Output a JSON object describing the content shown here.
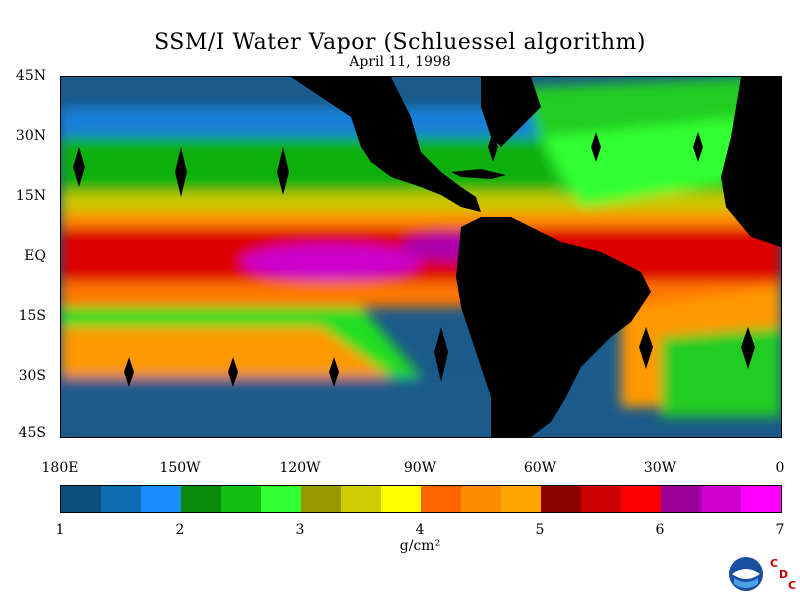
{
  "title": "SSM/I Water Vapor (Schluessel algorithm)",
  "date": "April 11, 1998",
  "lat_labels": [
    "45N",
    "30N",
    "15N",
    "EQ",
    "15S",
    "30S",
    "45S"
  ],
  "lon_labels": [
    "180E",
    "150W",
    "120W",
    "90W",
    "60W",
    "30W",
    "0"
  ],
  "color_scale": {
    "colors": [
      "#0d4f7a",
      "#0e6db0",
      "#1a8cff",
      "#0a8a0a",
      "#10c010",
      "#33ff33",
      "#999900",
      "#cccc00",
      "#ffff00",
      "#ff6600",
      "#ff8c00",
      "#ffa500",
      "#8b0000",
      "#cc0000",
      "#ff0000",
      "#990099",
      "#cc00cc",
      "#ff00ff"
    ],
    "labels": [
      "1",
      "2",
      "3",
      "4",
      "5",
      "6",
      "7"
    ],
    "units": "g/cm²"
  },
  "logo": {
    "icon": "noaa-logo-icon",
    "letters": [
      "C",
      "D",
      "C"
    ]
  }
}
